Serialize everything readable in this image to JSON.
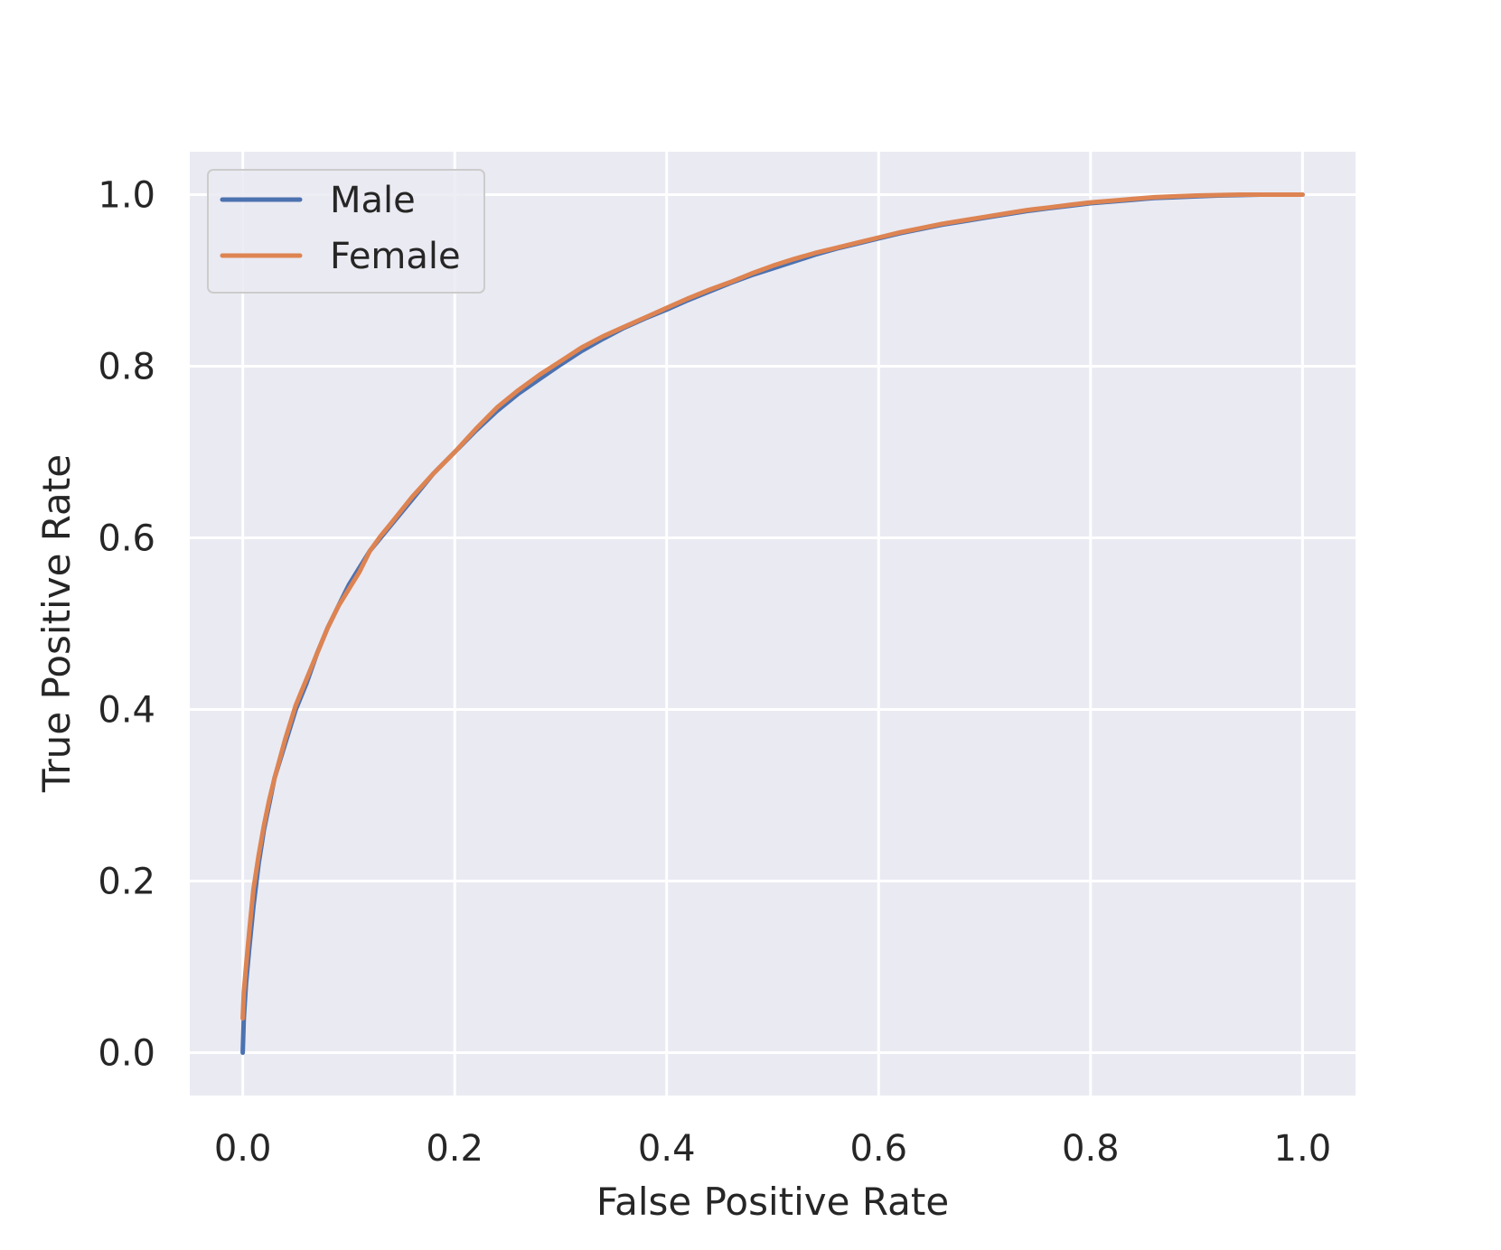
{
  "chart_data": {
    "type": "line",
    "title": "",
    "xlabel": "False Positive Rate",
    "ylabel": "True Positive Rate",
    "xlim": [
      -0.05,
      1.05
    ],
    "ylim": [
      -0.05,
      1.05
    ],
    "xticks": [
      "0.0",
      "0.2",
      "0.4",
      "0.6",
      "0.8",
      "1.0"
    ],
    "yticks": [
      "0.0",
      "0.2",
      "0.4",
      "0.6",
      "0.8",
      "1.0"
    ],
    "grid": true,
    "legend_position": "upper-left",
    "colors": {
      "background": "#eaeaf2",
      "grid": "#ffffff",
      "text": "#262626"
    },
    "series": [
      {
        "name": "Male",
        "color": "#4c72b0",
        "x": [
          0,
          0.001,
          0.003,
          0.006,
          0.01,
          0.015,
          0.02,
          0.025,
          0.03,
          0.04,
          0.05,
          0.06,
          0.07,
          0.08,
          0.09,
          0.1,
          0.11,
          0.12,
          0.13,
          0.14,
          0.16,
          0.18,
          0.2,
          0.22,
          0.24,
          0.26,
          0.28,
          0.3,
          0.32,
          0.34,
          0.36,
          0.38,
          0.4,
          0.42,
          0.44,
          0.46,
          0.48,
          0.5,
          0.52,
          0.54,
          0.56,
          0.58,
          0.6,
          0.62,
          0.64,
          0.66,
          0.68,
          0.7,
          0.72,
          0.74,
          0.76,
          0.78,
          0.8,
          0.82,
          0.84,
          0.86,
          0.88,
          0.9,
          0.92,
          0.94,
          0.96,
          0.98,
          1.0
        ],
        "y": [
          0.0,
          0.04,
          0.08,
          0.12,
          0.17,
          0.22,
          0.26,
          0.29,
          0.32,
          0.36,
          0.4,
          0.43,
          0.465,
          0.495,
          0.52,
          0.545,
          0.565,
          0.585,
          0.6,
          0.615,
          0.645,
          0.675,
          0.7,
          0.725,
          0.748,
          0.768,
          0.785,
          0.802,
          0.818,
          0.832,
          0.845,
          0.856,
          0.866,
          0.877,
          0.887,
          0.897,
          0.906,
          0.914,
          0.922,
          0.93,
          0.937,
          0.943,
          0.949,
          0.955,
          0.96,
          0.965,
          0.969,
          0.973,
          0.977,
          0.981,
          0.984,
          0.987,
          0.99,
          0.992,
          0.994,
          0.996,
          0.997,
          0.998,
          0.999,
          0.9995,
          1.0,
          1.0,
          1.0
        ]
      },
      {
        "name": "Female",
        "color": "#dd8452",
        "x": [
          0,
          0.001,
          0.003,
          0.006,
          0.01,
          0.015,
          0.02,
          0.025,
          0.03,
          0.04,
          0.05,
          0.06,
          0.07,
          0.08,
          0.09,
          0.1,
          0.11,
          0.12,
          0.13,
          0.14,
          0.16,
          0.18,
          0.2,
          0.22,
          0.24,
          0.26,
          0.28,
          0.3,
          0.32,
          0.34,
          0.36,
          0.38,
          0.4,
          0.42,
          0.44,
          0.46,
          0.48,
          0.5,
          0.52,
          0.54,
          0.56,
          0.58,
          0.6,
          0.62,
          0.64,
          0.66,
          0.68,
          0.7,
          0.72,
          0.74,
          0.76,
          0.78,
          0.8,
          0.82,
          0.84,
          0.86,
          0.88,
          0.9,
          0.92,
          0.94,
          0.96,
          0.98,
          1.0
        ],
        "y": [
          0.04,
          0.07,
          0.1,
          0.14,
          0.19,
          0.23,
          0.265,
          0.295,
          0.32,
          0.365,
          0.405,
          0.435,
          0.465,
          0.495,
          0.52,
          0.54,
          0.56,
          0.585,
          0.602,
          0.617,
          0.648,
          0.675,
          0.7,
          0.727,
          0.752,
          0.772,
          0.79,
          0.806,
          0.822,
          0.835,
          0.846,
          0.857,
          0.868,
          0.879,
          0.889,
          0.898,
          0.908,
          0.917,
          0.925,
          0.932,
          0.938,
          0.944,
          0.95,
          0.956,
          0.961,
          0.966,
          0.97,
          0.974,
          0.978,
          0.982,
          0.985,
          0.988,
          0.991,
          0.993,
          0.995,
          0.997,
          0.998,
          0.999,
          0.9995,
          1.0,
          1.0,
          1.0,
          1.0
        ]
      }
    ]
  }
}
